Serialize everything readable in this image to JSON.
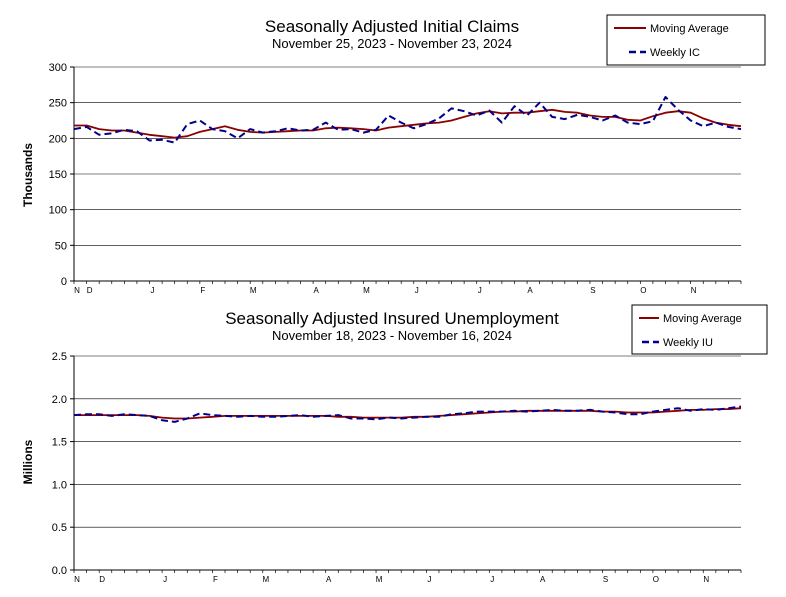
{
  "chart_data": [
    {
      "type": "line",
      "title": "Seasonally Adjusted Initial Claims",
      "subtitle": "November 25, 2023 - November 23, 2024",
      "ylabel": "Thousands",
      "ylim": [
        0,
        300
      ],
      "yticks": [
        "0",
        "50",
        "100",
        "150",
        "200",
        "250",
        "300"
      ],
      "month_labels": [
        "N",
        "D",
        "J",
        "F",
        "M",
        "A",
        "M",
        "J",
        "J",
        "A",
        "S",
        "O",
        "N"
      ],
      "month_weeks": [
        0,
        1,
        6,
        10,
        14,
        19,
        23,
        27,
        32,
        36,
        41,
        45,
        49
      ],
      "legend": [
        "Moving Average",
        "Weekly IC"
      ],
      "colors": {
        "moving_average": "#8B0000",
        "weekly": "#00008B"
      },
      "series": [
        {
          "name": "Moving Average",
          "style": "solid",
          "values": [
            218,
            218,
            213,
            211,
            211,
            208,
            205,
            203,
            201,
            203,
            209,
            213,
            217,
            212,
            209,
            208,
            209,
            210,
            211,
            211,
            214,
            215,
            214,
            213,
            211,
            215,
            217,
            219,
            221,
            222,
            225,
            230,
            235,
            238,
            235,
            236,
            236,
            238,
            240,
            237,
            236,
            232,
            230,
            230,
            226,
            225,
            231,
            236,
            238,
            236,
            228,
            222,
            219,
            217
          ]
        },
        {
          "name": "Weekly IC",
          "style": "dashed",
          "values": [
            213,
            216,
            205,
            207,
            212,
            210,
            197,
            198,
            194,
            220,
            225,
            213,
            210,
            200,
            213,
            208,
            210,
            214,
            211,
            212,
            222,
            212,
            213,
            208,
            212,
            232,
            222,
            214,
            220,
            228,
            242,
            238,
            232,
            239,
            222,
            245,
            232,
            250,
            230,
            227,
            233,
            230,
            225,
            232,
            222,
            220,
            224,
            258,
            240,
            225,
            217,
            222,
            216,
            213
          ]
        }
      ]
    },
    {
      "type": "line",
      "title": "Seasonally Adjusted Insured Unemployment",
      "subtitle": "November 18, 2023 - November 16, 2024",
      "ylabel": "Millions",
      "ylim": [
        0,
        2.5
      ],
      "yticks": [
        "0.0",
        "0.5",
        "1.0",
        "1.5",
        "2.0",
        "2.5"
      ],
      "month_labels": [
        "N",
        "D",
        "J",
        "F",
        "M",
        "A",
        "M",
        "J",
        "J",
        "A",
        "S",
        "O",
        "N"
      ],
      "month_weeks": [
        0,
        2,
        7,
        11,
        15,
        20,
        24,
        28,
        33,
        37,
        42,
        46,
        50
      ],
      "legend": [
        "Moving Average",
        "Weekly IU"
      ],
      "colors": {
        "moving_average": "#8B0000",
        "weekly": "#00008B"
      },
      "series": [
        {
          "name": "Moving Average",
          "style": "solid",
          "values": [
            1.81,
            1.81,
            1.81,
            1.81,
            1.81,
            1.81,
            1.8,
            1.78,
            1.77,
            1.77,
            1.78,
            1.79,
            1.8,
            1.8,
            1.8,
            1.8,
            1.8,
            1.8,
            1.8,
            1.8,
            1.8,
            1.79,
            1.79,
            1.78,
            1.78,
            1.78,
            1.78,
            1.79,
            1.79,
            1.8,
            1.81,
            1.82,
            1.83,
            1.84,
            1.85,
            1.85,
            1.86,
            1.86,
            1.86,
            1.86,
            1.86,
            1.86,
            1.85,
            1.85,
            1.84,
            1.84,
            1.84,
            1.85,
            1.86,
            1.87,
            1.87,
            1.88,
            1.88,
            1.89
          ]
        },
        {
          "name": "Weekly IU",
          "style": "dashed",
          "values": [
            1.81,
            1.82,
            1.82,
            1.8,
            1.82,
            1.81,
            1.8,
            1.75,
            1.73,
            1.77,
            1.83,
            1.81,
            1.8,
            1.79,
            1.8,
            1.79,
            1.79,
            1.8,
            1.81,
            1.79,
            1.8,
            1.81,
            1.77,
            1.77,
            1.76,
            1.78,
            1.77,
            1.78,
            1.79,
            1.79,
            1.82,
            1.83,
            1.85,
            1.85,
            1.85,
            1.86,
            1.85,
            1.86,
            1.87,
            1.86,
            1.86,
            1.87,
            1.85,
            1.84,
            1.82,
            1.82,
            1.85,
            1.87,
            1.89,
            1.86,
            1.88,
            1.87,
            1.89,
            1.91
          ]
        }
      ]
    }
  ]
}
